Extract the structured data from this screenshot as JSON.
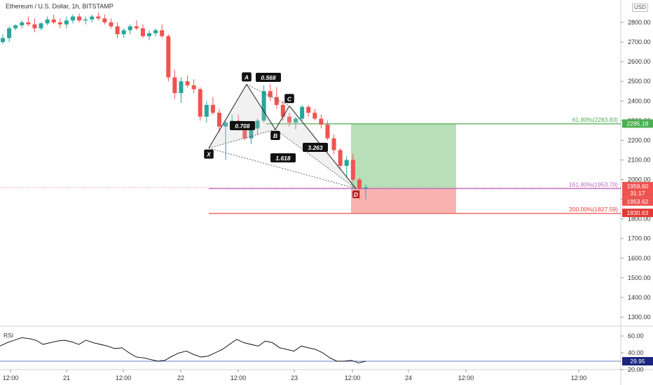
{
  "header": {
    "title": "Ethereum / U.S. Dollar, 1h, BITSTAMP",
    "currency": "USD"
  },
  "price_axis": {
    "ticks": [
      "2800.00",
      "2700.00",
      "2600.00",
      "2500.00",
      "2400.00",
      "2300.00",
      "2200.00",
      "2100.00",
      "2000.00",
      "1900.00",
      "1800.00",
      "1700.00",
      "1600.00",
      "1500.00",
      "1400.00",
      "1300.00"
    ]
  },
  "time_axis": {
    "ticks": [
      "12:00",
      "21",
      "12:00",
      "22",
      "12:00",
      "23",
      "12:00",
      "24",
      "12:00",
      "12:00"
    ]
  },
  "rsi": {
    "label": "RSI",
    "ticks": [
      "60.00",
      "40.00",
      "20.00"
    ],
    "current": "29.95"
  },
  "badges": {
    "target": "2285.18",
    "current_price": "1959.60",
    "countdown": "31:17",
    "last_close": "1953.62",
    "stop": "1830.63"
  },
  "levels": {
    "fib_618": "61.80%(2283.83)",
    "fib_1618": "161.80%(1953.70)",
    "fib_200": "200.00%(1827.59)"
  },
  "pattern": {
    "points": {
      "X": "X",
      "A": "A",
      "B": "B",
      "C": "C",
      "D": "D"
    },
    "ratios": {
      "xa_b": "0.708",
      "ab_c": "0.568",
      "bc_d": "3.263",
      "xd": "1.618"
    }
  },
  "colors": {
    "up": "#26a69a",
    "down": "#ef5350",
    "target_zone": "#b7dfb8",
    "stop_zone": "#f8b3b0",
    "fib_green": "#4caf50",
    "fib_purple": "#ba68c8",
    "fib_red": "#e53935",
    "rsi_line": "#000000",
    "rsi_level": "#3f51b5"
  },
  "chart_data": {
    "type": "candlestick",
    "symbol": "Ethereum / U.S. Dollar",
    "interval": "1h",
    "y_range": [
      1250,
      2850
    ],
    "harmonic_pattern": {
      "X": 2160,
      "A": 2485,
      "B": 2255,
      "C": 2375,
      "D": 1955,
      "ratios": {
        "B": 0.708,
        "C": 0.568,
        "D": 3.263,
        "XD": 1.618
      }
    },
    "levels": [
      {
        "label": "61.80%",
        "value": 2283.83
      },
      {
        "label": "161.80%",
        "value": 1953.7
      },
      {
        "label": "200.00%",
        "value": 1827.59
      }
    ],
    "position": {
      "entry": 1953.7,
      "target": 2285.18,
      "stop": 1830.63
    },
    "last_price": 1959.6,
    "candles": [
      [
        2700,
        2740,
        2690,
        2720
      ],
      [
        2720,
        2780,
        2700,
        2770
      ],
      [
        2770,
        2790,
        2760,
        2785
      ],
      [
        2785,
        2810,
        2770,
        2800
      ],
      [
        2800,
        2830,
        2780,
        2790
      ],
      [
        2790,
        2820,
        2750,
        2770
      ],
      [
        2770,
        2800,
        2760,
        2795
      ],
      [
        2795,
        2830,
        2785,
        2815
      ],
      [
        2815,
        2840,
        2790,
        2800
      ],
      [
        2800,
        2820,
        2770,
        2790
      ],
      [
        2790,
        2830,
        2770,
        2810
      ],
      [
        2810,
        2840,
        2795,
        2830
      ],
      [
        2830,
        2845,
        2800,
        2810
      ],
      [
        2810,
        2830,
        2790,
        2815
      ],
      [
        2815,
        2840,
        2800,
        2830
      ],
      [
        2830,
        2850,
        2810,
        2820
      ],
      [
        2820,
        2840,
        2790,
        2800
      ],
      [
        2800,
        2820,
        2770,
        2780
      ],
      [
        2780,
        2800,
        2720,
        2740
      ],
      [
        2740,
        2770,
        2720,
        2760
      ],
      [
        2760,
        2790,
        2740,
        2780
      ],
      [
        2780,
        2810,
        2760,
        2770
      ],
      [
        2770,
        2790,
        2720,
        2730
      ],
      [
        2730,
        2760,
        2710,
        2745
      ],
      [
        2745,
        2770,
        2730,
        2760
      ],
      [
        2760,
        2790,
        2720,
        2730
      ],
      [
        2730,
        2740,
        2500,
        2520
      ],
      [
        2520,
        2560,
        2410,
        2440
      ],
      [
        2440,
        2520,
        2390,
        2500
      ],
      [
        2500,
        2530,
        2470,
        2480
      ],
      [
        2480,
        2510,
        2440,
        2460
      ],
      [
        2460,
        2470,
        2300,
        2320
      ],
      [
        2320,
        2400,
        2290,
        2380
      ],
      [
        2380,
        2420,
        2330,
        2340
      ],
      [
        2340,
        2360,
        2240,
        2270
      ],
      [
        2270,
        2300,
        2100,
        2290
      ],
      [
        2290,
        2330,
        2270,
        2300
      ],
      [
        2300,
        2330,
        2250,
        2260
      ],
      [
        2260,
        2270,
        2200,
        2210
      ],
      [
        2210,
        2280,
        2180,
        2260
      ],
      [
        2260,
        2310,
        2230,
        2300
      ],
      [
        2300,
        2480,
        2290,
        2450
      ],
      [
        2450,
        2485,
        2400,
        2420
      ],
      [
        2420,
        2470,
        2360,
        2380
      ],
      [
        2380,
        2400,
        2300,
        2320
      ],
      [
        2320,
        2340,
        2270,
        2290
      ],
      [
        2290,
        2320,
        2255,
        2310
      ],
      [
        2310,
        2380,
        2300,
        2370
      ],
      [
        2370,
        2380,
        2320,
        2340
      ],
      [
        2340,
        2360,
        2300,
        2310
      ],
      [
        2310,
        2330,
        2260,
        2280
      ],
      [
        2280,
        2300,
        2200,
        2210
      ],
      [
        2210,
        2230,
        2130,
        2150
      ],
      [
        2150,
        2160,
        2050,
        2070
      ],
      [
        2070,
        2120,
        2010,
        2100
      ],
      [
        2100,
        2130,
        1990,
        2000
      ],
      [
        2000,
        2010,
        1900,
        1955
      ],
      [
        1955,
        1975,
        1900,
        1960
      ]
    ],
    "rsi_values": [
      48,
      52,
      55,
      58,
      57,
      55,
      50,
      52,
      54,
      55,
      53,
      50,
      55,
      52,
      50,
      48,
      45,
      46,
      40,
      35,
      34,
      32,
      30,
      31,
      36,
      40,
      42,
      38,
      35,
      36,
      40,
      44,
      50,
      56,
      52,
      50,
      48,
      54,
      52,
      46,
      44,
      42,
      48,
      46,
      44,
      40,
      34,
      30,
      30,
      31,
      28,
      29.95
    ]
  }
}
